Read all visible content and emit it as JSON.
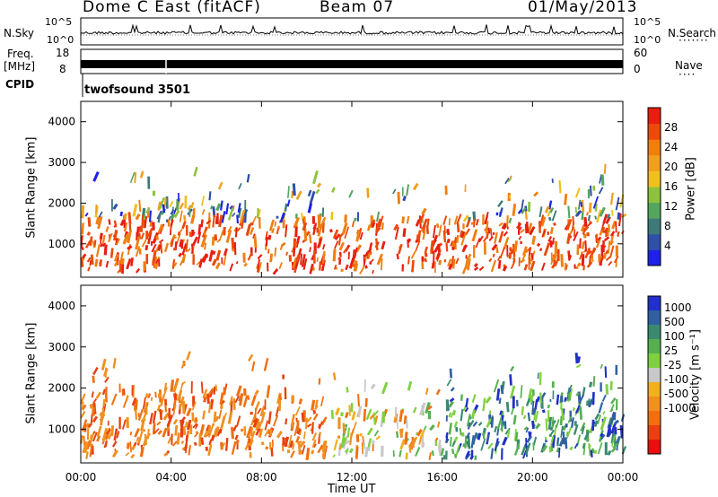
{
  "header": {
    "station": "Dome C East (fitACF)",
    "beam": "Beam 07",
    "date": "01/May/2013"
  },
  "top_panels": {
    "nsky": {
      "label": "N.Sky",
      "ticks": [
        "10^5",
        "10^0"
      ]
    },
    "nsearch": {
      "label": "N.Search",
      "ticks": [
        "10^5",
        "10^0"
      ]
    },
    "freq": {
      "label": "Freq.",
      "unit": "[MHz]",
      "ticks": [
        "18",
        "8"
      ]
    },
    "nave": {
      "label": "Nave",
      "ticks": [
        "60",
        "0"
      ]
    },
    "cpid": {
      "label": "CPID",
      "program": "twofsound 3501"
    }
  },
  "chart_data": [
    {
      "type": "heatmap",
      "name": "power",
      "ylabel": "Slant Range [km]",
      "xlabel": "",
      "x_ticks": [
        "00:00",
        "04:00",
        "08:00",
        "12:00",
        "16:00",
        "20:00",
        "00:00"
      ],
      "y_ticks": [
        1000,
        2000,
        3000,
        4000
      ],
      "ylim": [
        180,
        4500
      ],
      "xlim_hours": [
        0,
        24
      ],
      "colorbar": {
        "label": "Power [dB]",
        "ticks": [
          4,
          8,
          12,
          16,
          20,
          24,
          28
        ],
        "range": [
          0,
          32
        ],
        "colors": [
          "#1e22e6",
          "#2f4fa8",
          "#3d7a78",
          "#56a55f",
          "#8cc23e",
          "#f0c020",
          "#f0a020",
          "#f07f10",
          "#ea4a0a",
          "#e81e10"
        ]
      }
    },
    {
      "type": "heatmap",
      "name": "velocity",
      "ylabel": "Slant Range [km]",
      "xlabel": "Time UT",
      "x_ticks": [
        "00:00",
        "04:00",
        "08:00",
        "12:00",
        "16:00",
        "20:00",
        "00:00"
      ],
      "y_ticks": [
        1000,
        2000,
        3000,
        4000
      ],
      "ylim": [
        180,
        4500
      ],
      "xlim_hours": [
        0,
        24
      ],
      "colorbar": {
        "label": "Velocity [m s⁻¹]",
        "ticks": [
          "1000",
          "500",
          "100",
          "25",
          "-25",
          "-100",
          "-500",
          "-1000"
        ],
        "colors": [
          "#2030c8",
          "#3060a0",
          "#3a8a70",
          "#56b050",
          "#7fd040",
          "#c8c8c8",
          "#f0b020",
          "#f09020",
          "#f07010",
          "#e84010",
          "#e81010"
        ]
      }
    }
  ],
  "time_label": "Time UT"
}
